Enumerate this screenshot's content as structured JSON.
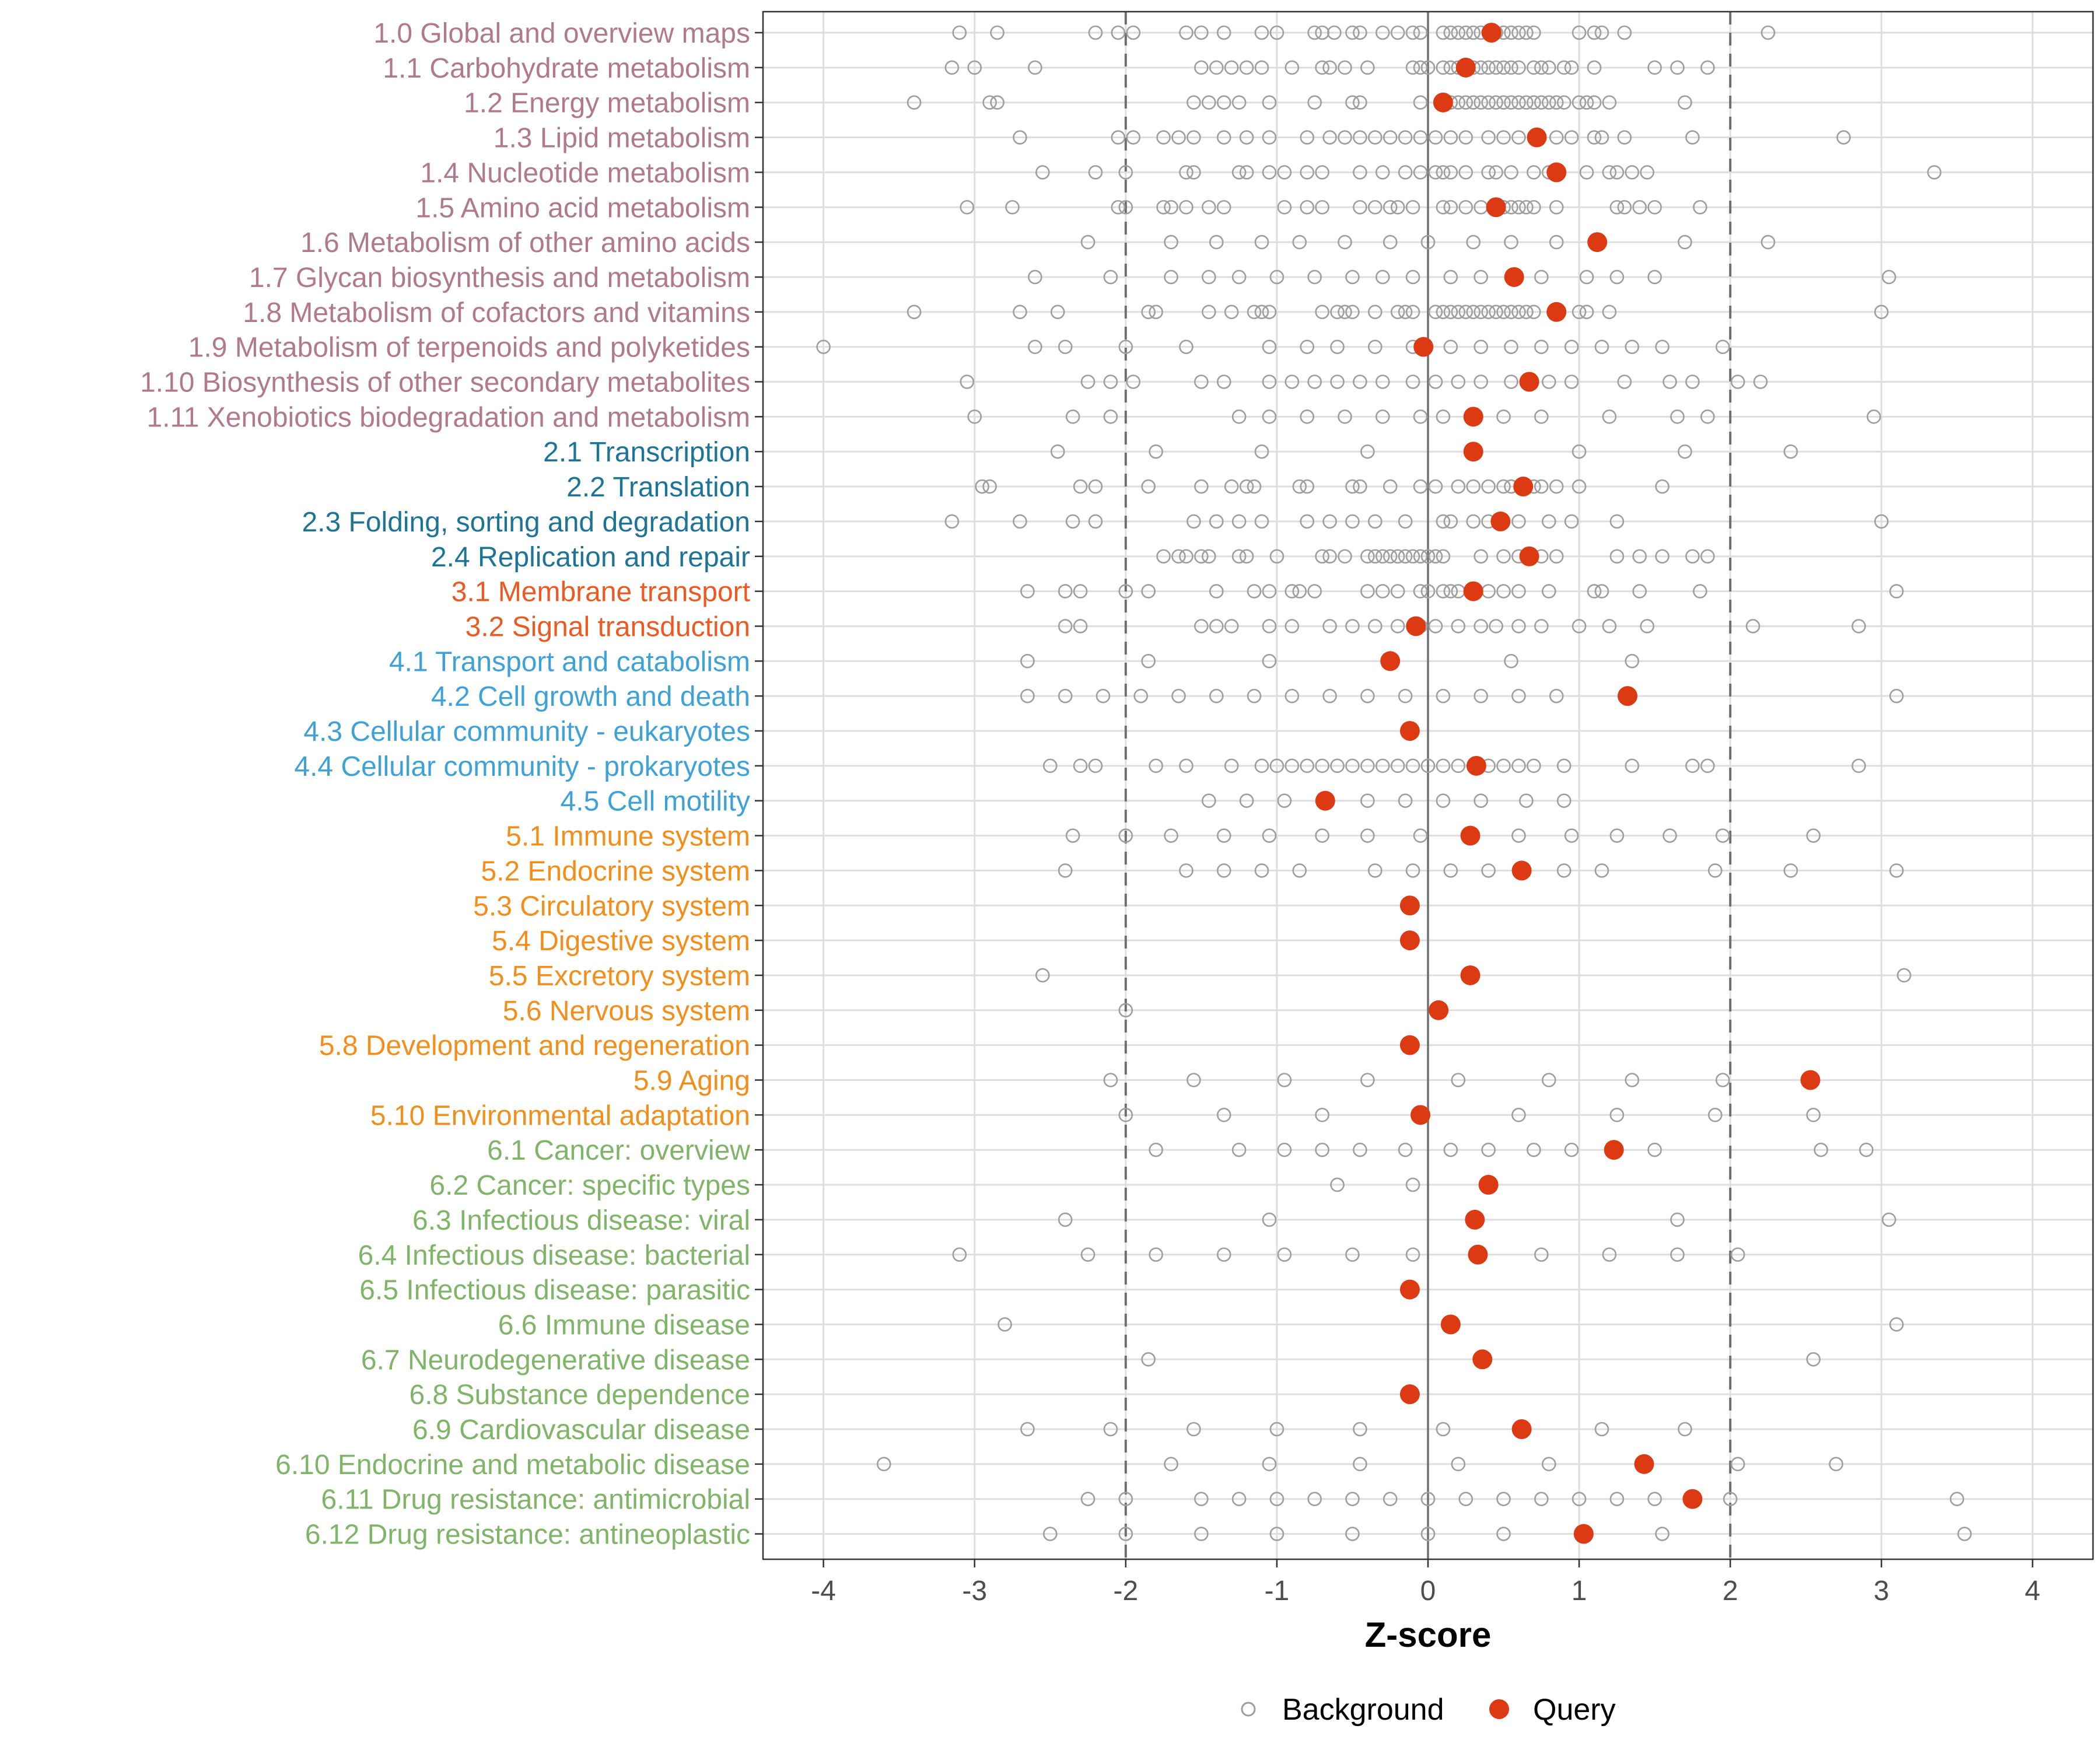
{
  "chart_data": {
    "type": "scatter",
    "title": "",
    "xlabel": "Z-score",
    "ylabel": "",
    "xlim": [
      -4.4,
      4.4
    ],
    "x_ticks": [
      -4,
      -3,
      -2,
      -1,
      0,
      1,
      2,
      3,
      4
    ],
    "x_tick_labels": [
      "-4",
      "-3",
      "-2",
      "-1",
      "0",
      "1",
      "2",
      "3",
      "4"
    ],
    "reference_lines": {
      "solid": [
        0
      ],
      "dashed": [
        -2,
        2
      ]
    },
    "grid": true,
    "legend": {
      "position": "bottom",
      "entries": [
        {
          "name": "Background",
          "marker": "open-circle"
        },
        {
          "name": "Query",
          "marker": "filled-circle"
        }
      ]
    },
    "group_colors": {
      "1": "#b07a8b",
      "2": "#1e7496",
      "3": "#ec5a24",
      "4": "#3fa2d6",
      "5": "#f28e1c",
      "6": "#80b468"
    },
    "series_colors": {
      "background": "#9e9e9e",
      "query": "#dc3a12"
    },
    "categories": [
      {
        "label": "1.0 Global and overview maps",
        "group": "1",
        "query": 0.42,
        "background": [
          -3.1,
          -2.85,
          -2.2,
          -2.05,
          -1.95,
          -1.6,
          -1.5,
          -1.35,
          -1.1,
          -1.0,
          -0.75,
          -0.7,
          -0.62,
          -0.5,
          -0.45,
          -0.3,
          -0.2,
          -0.1,
          -0.05,
          0.1,
          0.15,
          0.2,
          0.25,
          0.3,
          0.35,
          0.4,
          0.45,
          0.5,
          0.55,
          0.6,
          0.65,
          0.7,
          1.0,
          1.1,
          1.15,
          1.3,
          2.25
        ]
      },
      {
        "label": "1.1 Carbohydrate metabolism",
        "group": "1",
        "query": 0.25,
        "background": [
          -3.15,
          -3.0,
          -2.6,
          -1.5,
          -1.4,
          -1.3,
          -1.2,
          -1.1,
          -0.9,
          -0.7,
          -0.65,
          -0.55,
          -0.4,
          -0.1,
          -0.05,
          0.0,
          0.1,
          0.15,
          0.2,
          0.3,
          0.35,
          0.4,
          0.45,
          0.5,
          0.55,
          0.6,
          0.7,
          0.75,
          0.8,
          0.9,
          0.95,
          1.1,
          1.5,
          1.65,
          1.85
        ]
      },
      {
        "label": "1.2 Energy metabolism",
        "group": "1",
        "query": 0.1,
        "background": [
          -3.4,
          -2.9,
          -2.85,
          -1.55,
          -1.45,
          -1.35,
          -1.25,
          -1.05,
          -0.75,
          -0.5,
          -0.45,
          -0.05,
          0.15,
          0.2,
          0.25,
          0.3,
          0.35,
          0.4,
          0.45,
          0.5,
          0.55,
          0.6,
          0.65,
          0.7,
          0.75,
          0.8,
          0.85,
          0.9,
          1.0,
          1.05,
          1.1,
          1.2,
          1.7
        ]
      },
      {
        "label": "1.3 Lipid metabolism",
        "group": "1",
        "query": 0.72,
        "background": [
          -2.7,
          -2.05,
          -1.95,
          -1.75,
          -1.65,
          -1.55,
          -1.35,
          -1.2,
          -1.05,
          -0.8,
          -0.65,
          -0.55,
          -0.45,
          -0.35,
          -0.25,
          -0.15,
          -0.05,
          0.05,
          0.15,
          0.25,
          0.4,
          0.5,
          0.6,
          0.85,
          0.95,
          1.1,
          1.15,
          1.3,
          1.75,
          2.75
        ]
      },
      {
        "label": "1.4 Nucleotide metabolism",
        "group": "1",
        "query": 0.85,
        "background": [
          -2.55,
          -2.2,
          -2.0,
          -1.6,
          -1.55,
          -1.25,
          -1.2,
          -1.05,
          -0.95,
          -0.8,
          -0.7,
          -0.45,
          -0.3,
          -0.15,
          -0.05,
          0.05,
          0.1,
          0.15,
          0.25,
          0.4,
          0.45,
          0.55,
          0.7,
          0.8,
          1.05,
          1.2,
          1.25,
          1.35,
          1.45,
          3.35
        ]
      },
      {
        "label": "1.5 Amino acid metabolism",
        "group": "1",
        "query": 0.45,
        "background": [
          -3.05,
          -2.75,
          -2.05,
          -2.0,
          -1.75,
          -1.7,
          -1.6,
          -1.45,
          -1.35,
          -0.95,
          -0.8,
          -0.7,
          -0.45,
          -0.35,
          -0.25,
          -0.2,
          -0.1,
          0.1,
          0.15,
          0.25,
          0.35,
          0.45,
          0.5,
          0.55,
          0.6,
          0.65,
          0.7,
          0.85,
          1.25,
          1.3,
          1.4,
          1.5,
          1.8
        ]
      },
      {
        "label": "1.6 Metabolism of other amino acids",
        "group": "1",
        "query": 1.12,
        "background": [
          -2.25,
          -1.7,
          -1.4,
          -1.1,
          -0.85,
          -0.55,
          -0.25,
          0.0,
          0.3,
          0.55,
          0.85,
          1.7,
          2.25
        ]
      },
      {
        "label": "1.7 Glycan biosynthesis and metabolism",
        "group": "1",
        "query": 0.57,
        "background": [
          -2.6,
          -2.1,
          -1.7,
          -1.45,
          -1.25,
          -1.0,
          -0.75,
          -0.5,
          -0.3,
          -0.1,
          0.15,
          0.35,
          0.75,
          1.05,
          1.25,
          1.5,
          3.05
        ]
      },
      {
        "label": "1.8 Metabolism of cofactors and vitamins",
        "group": "1",
        "query": 0.85,
        "background": [
          -3.4,
          -2.7,
          -2.45,
          -1.85,
          -1.8,
          -1.45,
          -1.3,
          -1.15,
          -1.1,
          -1.05,
          -0.7,
          -0.6,
          -0.55,
          -0.5,
          -0.35,
          -0.2,
          -0.15,
          -0.1,
          0.05,
          0.1,
          0.15,
          0.2,
          0.25,
          0.3,
          0.35,
          0.4,
          0.45,
          0.5,
          0.55,
          0.6,
          0.65,
          0.7,
          1.0,
          1.05,
          1.2,
          3.0
        ]
      },
      {
        "label": "1.9 Metabolism of terpenoids and polyketides",
        "group": "1",
        "query": -0.03,
        "background": [
          -4.0,
          -2.6,
          -2.4,
          -2.0,
          -1.6,
          -1.05,
          -0.8,
          -0.6,
          -0.35,
          -0.1,
          0.15,
          0.35,
          0.55,
          0.75,
          0.95,
          1.15,
          1.35,
          1.55,
          1.95
        ]
      },
      {
        "label": "1.10 Biosynthesis of other secondary metabolites",
        "group": "1",
        "query": 0.67,
        "background": [
          -3.05,
          -2.25,
          -2.1,
          -1.95,
          -1.5,
          -1.35,
          -1.05,
          -0.9,
          -0.75,
          -0.6,
          -0.45,
          -0.3,
          -0.1,
          0.05,
          0.2,
          0.35,
          0.55,
          0.8,
          0.95,
          1.3,
          1.6,
          1.75,
          2.05,
          2.2
        ]
      },
      {
        "label": "1.11 Xenobiotics biodegradation and metabolism",
        "group": "1",
        "query": 0.3,
        "background": [
          -3.0,
          -2.35,
          -2.1,
          -1.25,
          -1.05,
          -0.8,
          -0.55,
          -0.3,
          -0.05,
          0.1,
          0.5,
          0.75,
          1.2,
          1.65,
          1.85,
          2.95
        ]
      },
      {
        "label": "2.1 Transcription",
        "group": "2",
        "query": 0.3,
        "background": [
          -2.45,
          -1.8,
          -1.1,
          -0.4,
          1.0,
          1.7,
          2.4
        ]
      },
      {
        "label": "2.2 Translation",
        "group": "2",
        "query": 0.63,
        "background": [
          -2.95,
          -2.9,
          -2.3,
          -2.2,
          -1.85,
          -1.5,
          -1.3,
          -1.2,
          -1.15,
          -0.85,
          -0.8,
          -0.5,
          -0.45,
          -0.25,
          -0.05,
          0.05,
          0.2,
          0.3,
          0.4,
          0.5,
          0.55,
          0.7,
          0.75,
          0.85,
          1.0,
          1.55
        ]
      },
      {
        "label": "2.3 Folding, sorting and degradation",
        "group": "2",
        "query": 0.48,
        "background": [
          -3.15,
          -2.7,
          -2.35,
          -2.2,
          -1.55,
          -1.4,
          -1.25,
          -1.1,
          -0.8,
          -0.65,
          -0.5,
          -0.35,
          -0.15,
          0.1,
          0.15,
          0.3,
          0.4,
          0.6,
          0.8,
          0.95,
          1.25,
          3.0
        ]
      },
      {
        "label": "2.4 Replication and repair",
        "group": "2",
        "query": 0.67,
        "background": [
          -1.75,
          -1.65,
          -1.6,
          -1.5,
          -1.45,
          -1.25,
          -1.2,
          -1.0,
          -0.7,
          -0.65,
          -0.55,
          -0.4,
          -0.35,
          -0.3,
          -0.25,
          -0.2,
          -0.15,
          -0.1,
          -0.05,
          0.0,
          0.05,
          0.1,
          0.35,
          0.5,
          0.6,
          0.75,
          0.85,
          1.25,
          1.4,
          1.55,
          1.75,
          1.85
        ]
      },
      {
        "label": "3.1 Membrane transport",
        "group": "3",
        "query": 0.3,
        "background": [
          -2.65,
          -2.4,
          -2.3,
          -2.0,
          -1.85,
          -1.4,
          -1.15,
          -1.05,
          -0.9,
          -0.85,
          -0.75,
          -0.4,
          -0.3,
          -0.2,
          -0.05,
          0.0,
          0.1,
          0.15,
          0.2,
          0.3,
          0.4,
          0.5,
          0.6,
          0.8,
          1.1,
          1.15,
          1.4,
          1.8,
          3.1
        ]
      },
      {
        "label": "3.2 Signal transduction",
        "group": "3",
        "query": -0.08,
        "background": [
          -2.4,
          -2.3,
          -1.5,
          -1.4,
          -1.3,
          -1.05,
          -0.9,
          -0.65,
          -0.5,
          -0.35,
          -0.2,
          -0.05,
          0.05,
          0.2,
          0.35,
          0.45,
          0.6,
          0.75,
          1.0,
          1.2,
          1.45,
          2.15,
          2.85
        ]
      },
      {
        "label": "4.1 Transport and catabolism",
        "group": "4",
        "query": -0.25,
        "background": [
          -2.65,
          -1.85,
          -1.05,
          0.55,
          1.35
        ]
      },
      {
        "label": "4.2 Cell growth and death",
        "group": "4",
        "query": 1.32,
        "background": [
          -2.65,
          -2.4,
          -2.15,
          -1.9,
          -1.65,
          -1.4,
          -1.15,
          -0.9,
          -0.65,
          -0.4,
          -0.15,
          0.1,
          0.35,
          0.6,
          0.85,
          3.1
        ]
      },
      {
        "label": "4.3 Cellular community - eukaryotes",
        "group": "4",
        "query": -0.12,
        "background": []
      },
      {
        "label": "4.4 Cellular community - prokaryotes",
        "group": "4",
        "query": 0.32,
        "background": [
          -2.5,
          -2.3,
          -2.2,
          -1.8,
          -1.6,
          -1.3,
          -1.1,
          -1.0,
          -0.9,
          -0.8,
          -0.7,
          -0.6,
          -0.5,
          -0.4,
          -0.3,
          -0.2,
          -0.1,
          0.0,
          0.1,
          0.2,
          0.4,
          0.5,
          0.6,
          0.7,
          0.9,
          1.35,
          1.75,
          1.85,
          2.85
        ]
      },
      {
        "label": "4.5 Cell motility",
        "group": "4",
        "query": -0.68,
        "background": [
          -1.45,
          -1.2,
          -0.95,
          -0.4,
          -0.15,
          0.1,
          0.35,
          0.65,
          0.9
        ]
      },
      {
        "label": "5.1 Immune system",
        "group": "5",
        "query": 0.28,
        "background": [
          -2.35,
          -2.0,
          -1.7,
          -1.35,
          -1.05,
          -0.7,
          -0.4,
          -0.05,
          0.6,
          0.95,
          1.25,
          1.6,
          1.95,
          2.55
        ]
      },
      {
        "label": "5.2 Endocrine system",
        "group": "5",
        "query": 0.62,
        "background": [
          -2.4,
          -1.6,
          -1.35,
          -1.1,
          -0.85,
          -0.35,
          -0.1,
          0.15,
          0.4,
          0.9,
          1.15,
          1.9,
          2.4,
          3.1
        ]
      },
      {
        "label": "5.3 Circulatory system",
        "group": "5",
        "query": -0.12,
        "background": []
      },
      {
        "label": "5.4 Digestive system",
        "group": "5",
        "query": -0.12,
        "background": []
      },
      {
        "label": "5.5 Excretory system",
        "group": "5",
        "query": 0.28,
        "background": [
          -2.55,
          3.15
        ]
      },
      {
        "label": "5.6 Nervous system",
        "group": "5",
        "query": 0.07,
        "background": [
          -2.0
        ]
      },
      {
        "label": "5.8 Development and regeneration",
        "group": "5",
        "query": -0.12,
        "background": []
      },
      {
        "label": "5.9 Aging",
        "group": "5",
        "query": 2.53,
        "background": [
          -2.1,
          -1.55,
          -0.95,
          -0.4,
          0.2,
          0.8,
          1.35,
          1.95
        ]
      },
      {
        "label": "5.10 Environmental adaptation",
        "group": "5",
        "query": -0.05,
        "background": [
          -2.0,
          -1.35,
          -0.7,
          0.6,
          1.25,
          1.9,
          2.55
        ]
      },
      {
        "label": "6.1 Cancer: overview",
        "group": "6",
        "query": 1.23,
        "background": [
          -1.8,
          -1.25,
          -0.95,
          -0.7,
          -0.45,
          -0.15,
          0.15,
          0.4,
          0.7,
          0.95,
          1.5,
          2.6,
          2.9
        ]
      },
      {
        "label": "6.2 Cancer: specific types",
        "group": "6",
        "query": 0.4,
        "background": [
          -0.6,
          -0.1
        ]
      },
      {
        "label": "6.3 Infectious disease: viral",
        "group": "6",
        "query": 0.31,
        "background": [
          -2.4,
          -1.05,
          1.65,
          3.05
        ]
      },
      {
        "label": "6.4 Infectious disease: bacterial",
        "group": "6",
        "query": 0.33,
        "background": [
          -3.1,
          -2.25,
          -1.8,
          -1.35,
          -0.95,
          -0.5,
          -0.1,
          0.75,
          1.2,
          1.65,
          2.05
        ]
      },
      {
        "label": "6.5 Infectious disease: parasitic",
        "group": "6",
        "query": -0.12,
        "background": []
      },
      {
        "label": "6.6 Immune disease",
        "group": "6",
        "query": 0.15,
        "background": [
          -2.8,
          3.1
        ]
      },
      {
        "label": "6.7 Neurodegenerative disease",
        "group": "6",
        "query": 0.36,
        "background": [
          -1.85,
          2.55
        ]
      },
      {
        "label": "6.8 Substance dependence",
        "group": "6",
        "query": -0.12,
        "background": []
      },
      {
        "label": "6.9 Cardiovascular disease",
        "group": "6",
        "query": 0.62,
        "background": [
          -2.65,
          -2.1,
          -1.55,
          -1.0,
          -0.45,
          0.1,
          1.15,
          1.7
        ]
      },
      {
        "label": "6.10 Endocrine and metabolic disease",
        "group": "6",
        "query": 1.43,
        "background": [
          -3.6,
          -1.7,
          -1.05,
          -0.45,
          0.2,
          0.8,
          2.05,
          2.7
        ]
      },
      {
        "label": "6.11 Drug resistance: antimicrobial",
        "group": "6",
        "query": 1.75,
        "background": [
          -2.25,
          -2.0,
          -1.5,
          -1.25,
          -1.0,
          -0.75,
          -0.5,
          -0.25,
          0.0,
          0.25,
          0.5,
          0.75,
          1.0,
          1.25,
          1.5,
          2.0,
          3.5
        ]
      },
      {
        "label": "6.12 Drug resistance: antineoplastic",
        "group": "6",
        "query": 1.03,
        "background": [
          -2.5,
          -2.0,
          -1.5,
          -1.0,
          -0.5,
          0.0,
          0.5,
          1.55,
          3.55
        ]
      }
    ]
  }
}
